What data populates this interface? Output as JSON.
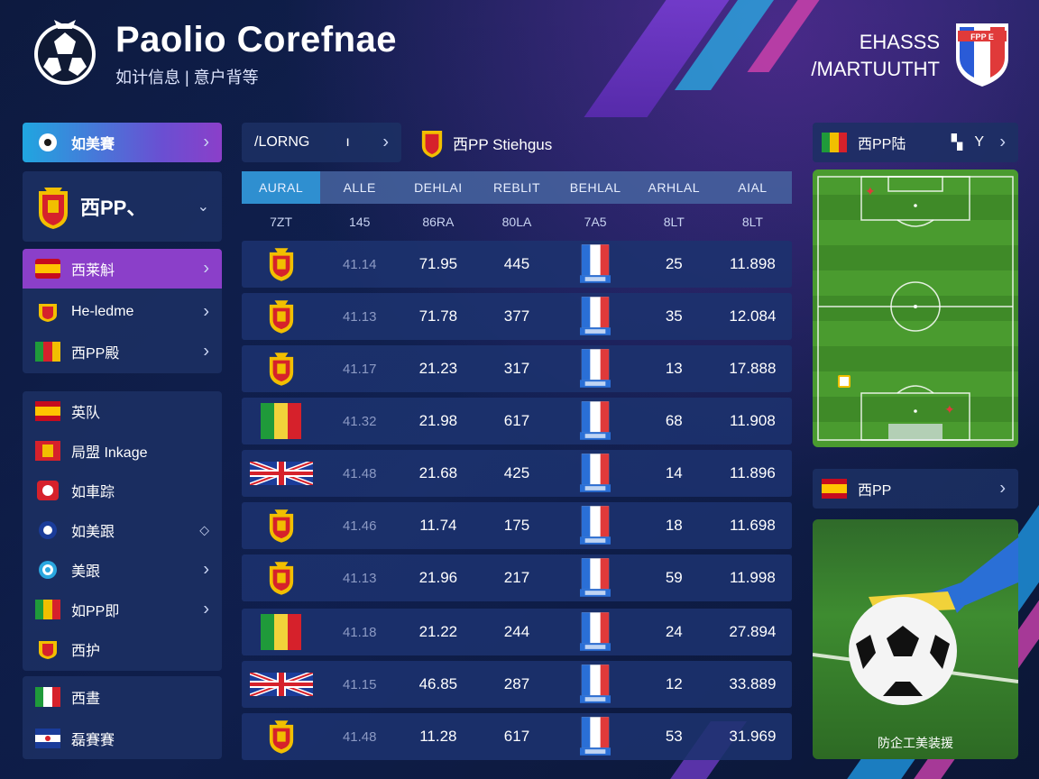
{
  "header": {
    "title": "Paolio Corefnae",
    "subtitle": "如计信息 | 意户背等",
    "right_line1": "EHASSS",
    "right_line2": "/MARTUUTHT"
  },
  "sidebar": {
    "top_button": {
      "label": "如美賽",
      "icon": "soccer-ball-icon"
    },
    "team_select": {
      "label": "西PP、",
      "icon": "spain-crest-icon"
    },
    "group1": [
      {
        "label": "西莱斛",
        "flag": "spain-flag",
        "active": true
      },
      {
        "label": "He-ledme",
        "flag": "crest"
      },
      {
        "label": "西PP殿",
        "flag": "flag"
      }
    ],
    "group2": [
      {
        "label": "英队",
        "flag": "spain-flag"
      },
      {
        "label": "局盟 Inkage",
        "flag": "crest"
      },
      {
        "label": "如車踪",
        "flag": "badge"
      },
      {
        "label": "如美跟",
        "flag": "ball"
      },
      {
        "label": "美跟",
        "flag": "round-badge"
      },
      {
        "label": "如PP即",
        "flag": "flag"
      },
      {
        "label": "西护",
        "flag": "crest"
      }
    ],
    "group3": [
      {
        "label": "西晝",
        "flag": "italy-flag"
      },
      {
        "label": "磊賽賽",
        "flag": "flag"
      }
    ]
  },
  "toolbar": {
    "dropdown_label": "/LORNG",
    "dropdown_value": "ı",
    "section_label": "西PP Stiehgus"
  },
  "table": {
    "headers": [
      "AURAL",
      "ALLE",
      "DEHLAI",
      "REBLIT",
      "BEHLAL",
      "ARHLAL",
      "AIAL"
    ],
    "subheaders": [
      "7ZT",
      "145",
      "86RA",
      "80LA",
      "7A5",
      "8LT",
      "8LT"
    ],
    "rows": [
      {
        "icon": "crest",
        "c1": "41.14",
        "c2": "71.95",
        "c3": "445",
        "c5": "25",
        "c6": "11.898"
      },
      {
        "icon": "crest",
        "c1": "41.13",
        "c2": "71.78",
        "c3": "377",
        "c5": "35",
        "c6": "12.084"
      },
      {
        "icon": "crest",
        "c1": "41.17",
        "c2": "21.23",
        "c3": "317",
        "c5": "13",
        "c6": "17.888"
      },
      {
        "icon": "tricolor",
        "c1": "41.32",
        "c2": "21.98",
        "c3": "617",
        "c5": "68",
        "c6": "11.908"
      },
      {
        "icon": "union-jack",
        "c1": "41.48",
        "c2": "21.68",
        "c3": "425",
        "c5": "14",
        "c6": "11.896"
      },
      {
        "icon": "crest",
        "c1": "41.46",
        "c2": "11.74",
        "c3": "175",
        "c5": "18",
        "c6": "11.698"
      },
      {
        "icon": "crest",
        "c1": "41.13",
        "c2": "21.96",
        "c3": "217",
        "c5": "59",
        "c6": "11.998"
      },
      {
        "icon": "tricolor",
        "c1": "41.18",
        "c2": "21.22",
        "c3": "244",
        "c5": "24",
        "c6": "27.894"
      },
      {
        "icon": "union-jack",
        "c1": "41.15",
        "c2": "46.85",
        "c3": "287",
        "c5": "12",
        "c6": "33.889"
      },
      {
        "icon": "crest",
        "c1": "41.48",
        "c2": "11.28",
        "c3": "617",
        "c5": "53",
        "c6": "31.969"
      }
    ]
  },
  "right": {
    "pitch_label": "西PP陆",
    "pitch_controls": "Y",
    "second_label": "西PP",
    "photo_caption": "防企工美装援"
  },
  "colors": {
    "background": "#0c1838",
    "panel": "#1c3064",
    "active_purple": "#8b3fc9",
    "accent_cyan": "#2aa7e0",
    "pitch_green": "#4a9b2f"
  }
}
